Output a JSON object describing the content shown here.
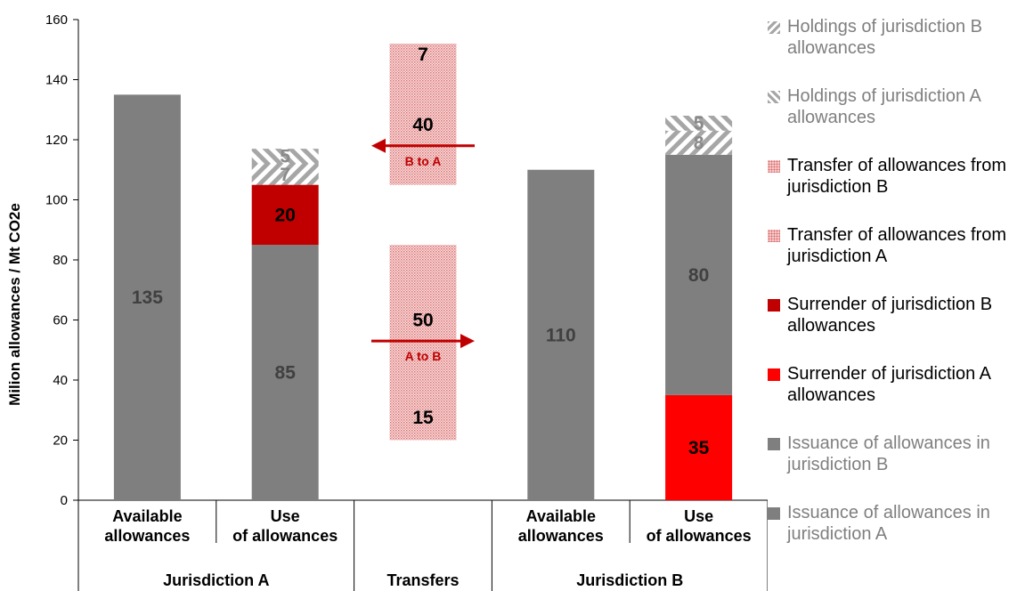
{
  "chart_data": {
    "type": "bar",
    "stacked": true,
    "ylabel": "Milion allowances / Mt CO2e",
    "ylim": [
      0,
      160
    ],
    "yticks": [
      0,
      20,
      40,
      60,
      80,
      100,
      120,
      140,
      160
    ],
    "categories": [
      "Available allowances",
      "Use of allowances",
      "",
      "Available allowances",
      "Use of allowances"
    ],
    "groups": [
      {
        "label": "Jurisdiction A",
        "span": [
          0,
          1
        ]
      },
      {
        "label": "Transfers",
        "span": [
          2,
          2
        ]
      },
      {
        "label": "Jurisdiction B",
        "span": [
          3,
          4
        ]
      }
    ],
    "segments": [
      {
        "cat": 0,
        "base": 0,
        "value": 135,
        "style": "grey",
        "label": "135"
      },
      {
        "cat": 1,
        "base": 0,
        "value": 85,
        "style": "grey",
        "label": "85"
      },
      {
        "cat": 1,
        "base": 85,
        "value": 20,
        "style": "darkred",
        "label": "20"
      },
      {
        "cat": 1,
        "base": 105,
        "value": 7,
        "style": "hatchA",
        "label": "7"
      },
      {
        "cat": 1,
        "base": 112,
        "value": 5,
        "style": "hatchB",
        "label": "5"
      },
      {
        "cat": 2,
        "base": 20,
        "value": 15,
        "style": "dots",
        "label": "15"
      },
      {
        "cat": 2,
        "base": 35,
        "value": 50,
        "style": "dots",
        "label": "50"
      },
      {
        "cat": 2,
        "base": 105,
        "value": 40,
        "style": "dots",
        "label": "40"
      },
      {
        "cat": 2,
        "base": 145,
        "value": 7,
        "style": "dots",
        "label": "7"
      },
      {
        "cat": 3,
        "base": 0,
        "value": 110,
        "style": "grey",
        "label": "110"
      },
      {
        "cat": 4,
        "base": 0,
        "value": 35,
        "style": "red",
        "label": "35"
      },
      {
        "cat": 4,
        "base": 35,
        "value": 80,
        "style": "grey",
        "label": "80"
      },
      {
        "cat": 4,
        "base": 115,
        "value": 8,
        "style": "hatchA",
        "label": "8"
      },
      {
        "cat": 4,
        "base": 123,
        "value": 5,
        "style": "hatchB",
        "label": "5"
      }
    ],
    "arrows": [
      {
        "label": "B to A",
        "direction": "left",
        "y": 118
      },
      {
        "label": "A to B",
        "direction": "right",
        "y": 53
      }
    ],
    "legend": [
      {
        "label": "Holdings of jurisdiction B allowances",
        "style": "hatchB"
      },
      {
        "label": "Holdings of jurisdiction A allowances",
        "style": "hatchA"
      },
      {
        "label": "Transfer of allowances from jurisdiction B",
        "style": "dots"
      },
      {
        "label": "Transfer of allowances from jurisdiction A",
        "style": "dots"
      },
      {
        "label": "Surrender of jurisdiction B allowances",
        "style": "darkred"
      },
      {
        "label": "Surrender of jurisdiction A allowances",
        "style": "red"
      },
      {
        "label": "Issuance of allowances in jurisdiction B",
        "style": "grey"
      },
      {
        "label": "Issuance of allowances in jurisdiction A",
        "style": "grey"
      }
    ],
    "legend_position": "right",
    "colors": {
      "grey": "#7f7f7f",
      "darkred": "#c00000",
      "red": "#ff0000",
      "dots": "#e69595",
      "hatch": "#a6a6a6",
      "arrow": "#c00000"
    }
  }
}
